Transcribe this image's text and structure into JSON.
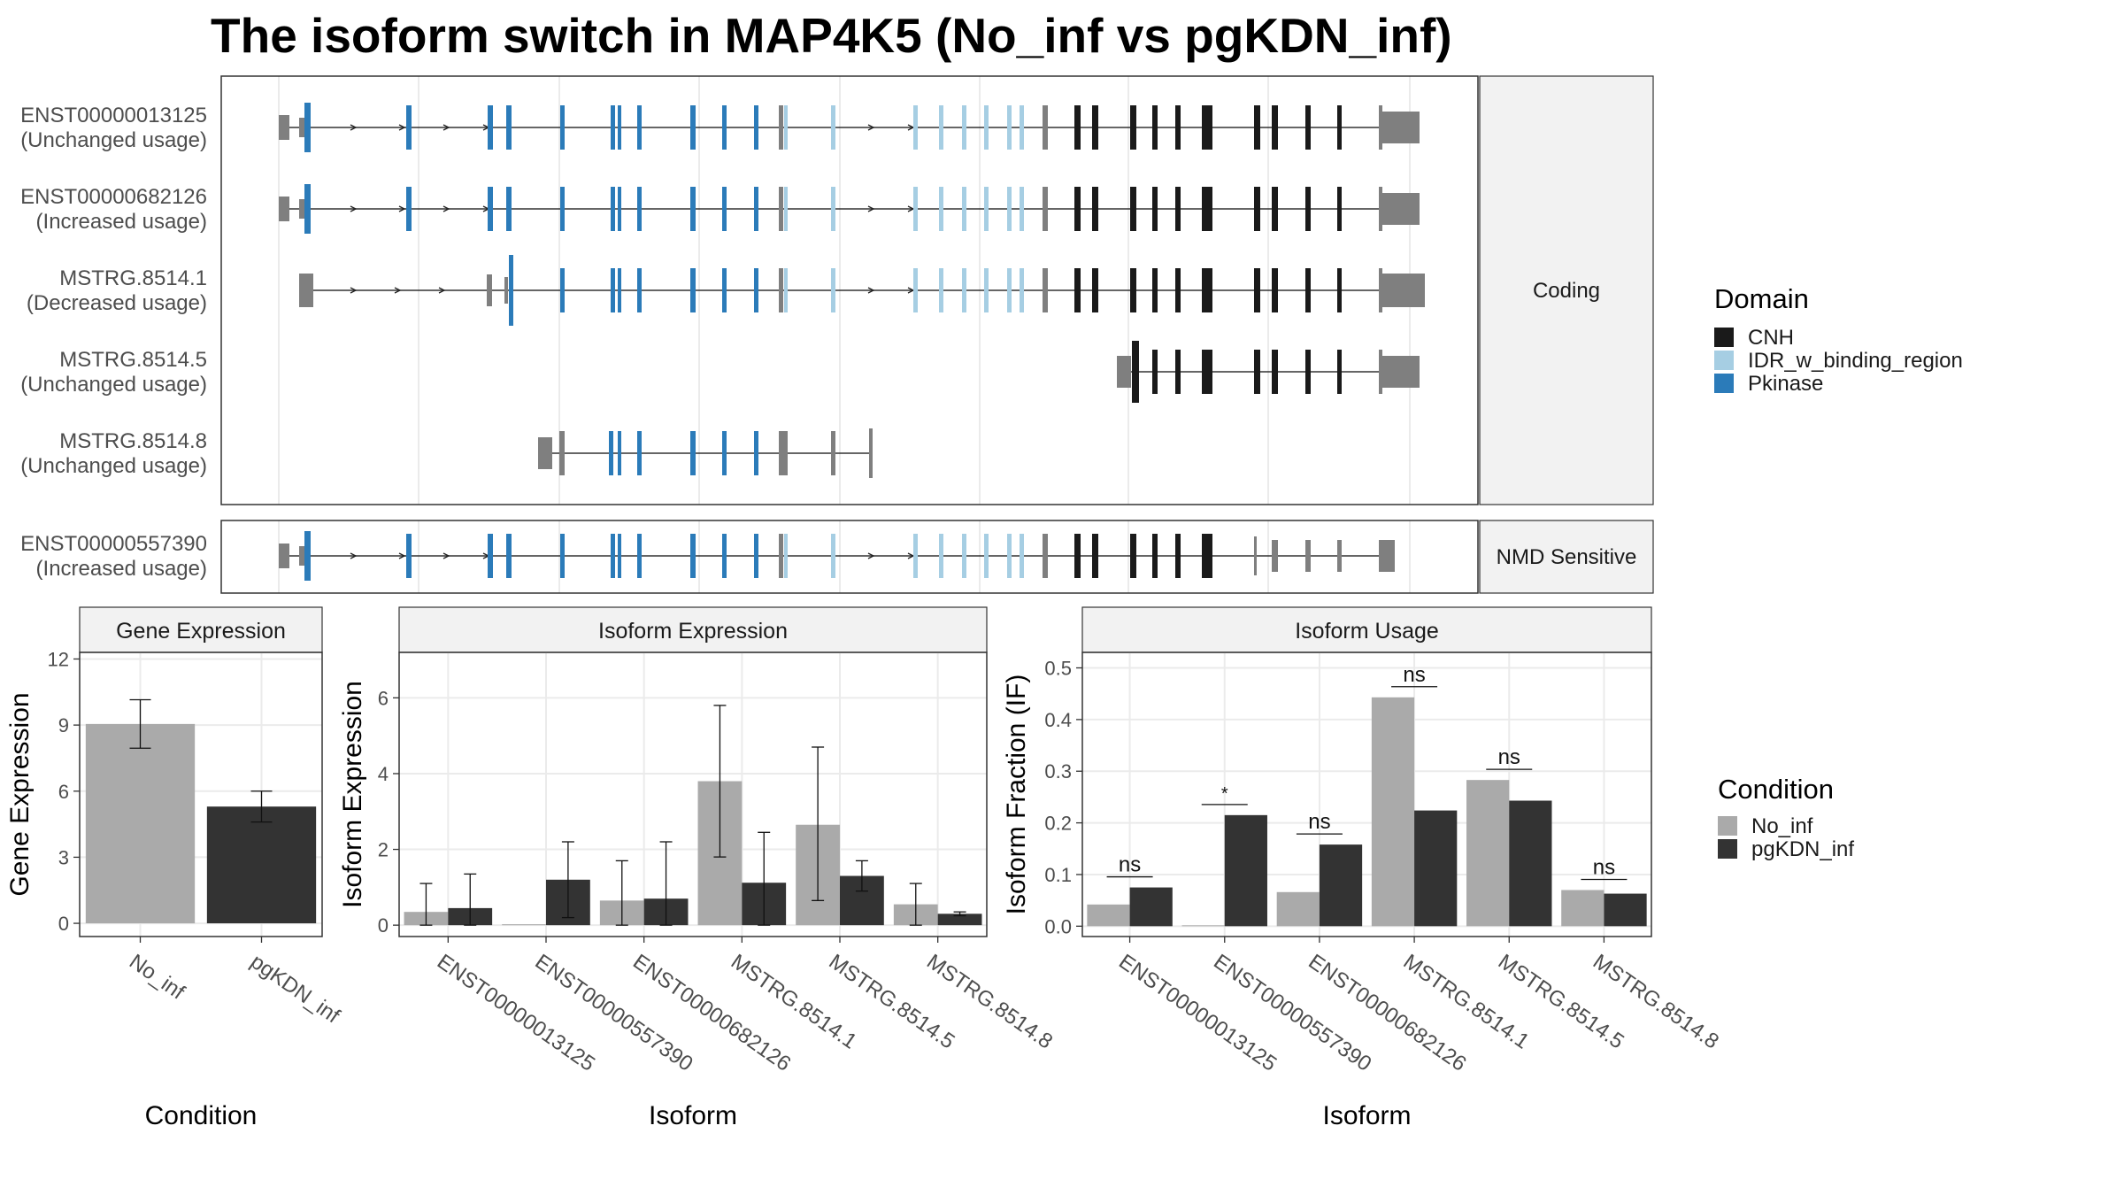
{
  "title": "The isoform switch in MAP4K5 (No_inf vs pgKDN_inf)",
  "colors": {
    "CNH": "#1a1a1a",
    "IDR_w_binding_region": "#a6cee3",
    "Pkinase": "#2b7bb9",
    "noncoding_exon": "#7f7f7f",
    "No_inf": "#aaaaaa",
    "pgKDN_inf": "#333333",
    "strip": "#f2f2f2",
    "grid": "#ebebeb"
  },
  "transcript_panels": [
    {
      "strip": "Coding",
      "rows": 5
    },
    {
      "strip": "NMD Sensitive",
      "rows": 1
    }
  ],
  "transcripts": [
    {
      "id": "ENST00000013125",
      "usage": "(Unchanged usage)",
      "panel": 0,
      "type": "full"
    },
    {
      "id": "ENST00000682126",
      "usage": "(Increased usage)",
      "panel": 0,
      "type": "full"
    },
    {
      "id": "MSTRG.8514.1",
      "usage": "(Decreased usage)",
      "panel": 0,
      "type": "alt"
    },
    {
      "id": "MSTRG.8514.5",
      "usage": "(Unchanged usage)",
      "panel": 0,
      "type": "cnh_only"
    },
    {
      "id": "MSTRG.8514.8",
      "usage": "(Unchanged usage)",
      "panel": 0,
      "type": "kinase_only"
    },
    {
      "id": "ENST00000557390",
      "usage": "(Increased usage)",
      "panel": 1,
      "type": "nmd"
    }
  ],
  "domain_legend": {
    "title": "Domain",
    "items": [
      {
        "label": "CNH",
        "color": "#1a1a1a"
      },
      {
        "label": "IDR_w_binding_region",
        "color": "#a6cee3"
      },
      {
        "label": "Pkinase",
        "color": "#2b7bb9"
      }
    ]
  },
  "condition_legend": {
    "title": "Condition",
    "items": [
      {
        "label": "No_inf",
        "color": "#aaaaaa"
      },
      {
        "label": "pgKDN_inf",
        "color": "#333333"
      }
    ]
  },
  "chart_data": [
    {
      "type": "bar",
      "strip": "Gene Expression",
      "xlabel": "Condition",
      "ylabel": "Gene Expression",
      "categories": [
        "No_inf",
        "pgKDN_inf"
      ],
      "values": [
        9.05,
        5.3
      ],
      "err_low": [
        7.95,
        4.6
      ],
      "err_high": [
        10.15,
        6.0
      ],
      "ylim": [
        -0.6,
        12.3
      ],
      "yticks": [
        0,
        3,
        6,
        9,
        12
      ]
    },
    {
      "type": "bar",
      "strip": "Isoform Expression",
      "xlabel": "Isoform",
      "ylabel": "Isoform Expression",
      "categories": [
        "ENST00000013125",
        "ENST00000557390",
        "ENST00000682126",
        "MSTRG.8514.1",
        "MSTRG.8514.5",
        "MSTRG.8514.8"
      ],
      "series": [
        {
          "name": "No_inf",
          "values": [
            0.35,
            0.0,
            0.65,
            3.8,
            2.65,
            0.55
          ],
          "err_low": [
            0.0,
            null,
            0.0,
            1.8,
            0.65,
            0.0
          ],
          "err_high": [
            1.1,
            null,
            1.7,
            5.8,
            4.7,
            1.1
          ]
        },
        {
          "name": "pgKDN_inf",
          "values": [
            0.45,
            1.2,
            0.7,
            1.12,
            1.3,
            0.3
          ],
          "err_low": [
            0.0,
            0.2,
            0.0,
            0.0,
            0.9,
            0.25
          ],
          "err_high": [
            1.35,
            2.2,
            2.2,
            2.45,
            1.7,
            0.35
          ]
        }
      ],
      "ylim": [
        -0.3,
        7.2
      ],
      "yticks": [
        0,
        2,
        4,
        6
      ]
    },
    {
      "type": "bar",
      "strip": "Isoform Usage",
      "xlabel": "Isoform",
      "ylabel": "Isoform Fraction (IF)",
      "categories": [
        "ENST00000013125",
        "ENST00000557390",
        "ENST00000682126",
        "MSTRG.8514.1",
        "MSTRG.8514.5",
        "MSTRG.8514.8"
      ],
      "series": [
        {
          "name": "No_inf",
          "values": [
            0.042,
            0.0,
            0.066,
            0.443,
            0.283,
            0.07
          ]
        },
        {
          "name": "pgKDN_inf",
          "values": [
            0.075,
            0.215,
            0.158,
            0.224,
            0.243,
            0.063
          ]
        }
      ],
      "significance": [
        "ns",
        "*",
        "ns",
        "ns",
        "ns",
        "ns"
      ],
      "ylim": [
        -0.02,
        0.53
      ],
      "yticks": [
        0.0,
        0.1,
        0.2,
        0.3,
        0.4,
        0.5
      ]
    }
  ]
}
